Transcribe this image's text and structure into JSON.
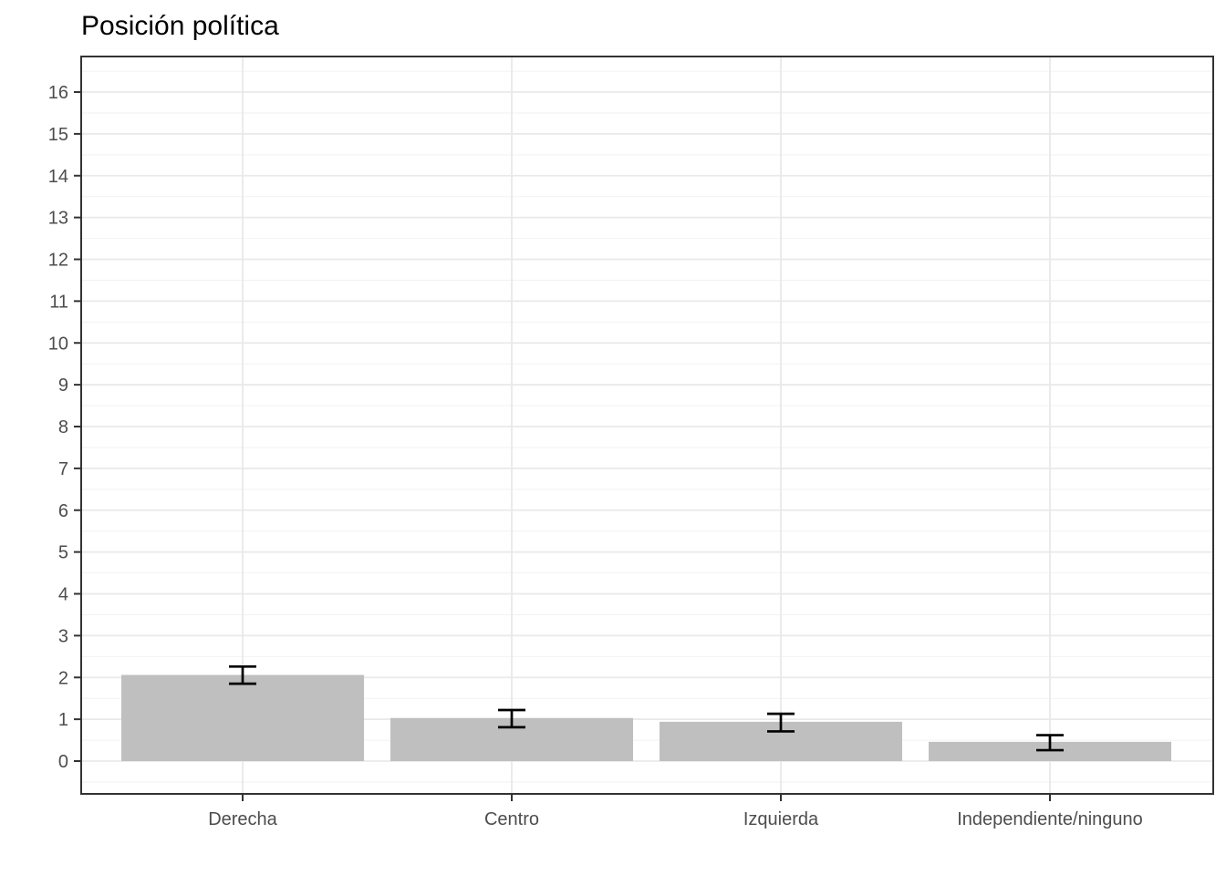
{
  "chart_data": {
    "type": "bar",
    "title": "Posición política",
    "xlabel": "",
    "ylabel": "",
    "categories": [
      "Derecha",
      "Centro",
      "Izquierda",
      "Independiente/ninguno"
    ],
    "values": [
      2.06,
      1.03,
      0.94,
      0.46
    ],
    "error_upper": [
      2.26,
      1.22,
      1.13,
      0.62
    ],
    "error_lower": [
      1.85,
      0.81,
      0.71,
      0.26
    ],
    "ylim": [
      0,
      16
    ],
    "yticks": [
      0,
      1,
      2,
      3,
      4,
      5,
      6,
      7,
      8,
      9,
      10,
      11,
      12,
      13,
      14,
      15,
      16
    ],
    "grid": {
      "major": true,
      "minor": true,
      "minor_step": 0.5
    },
    "legend": "none",
    "colors": {
      "bar_fill": "#bfbfbf",
      "error_bar": "#000000",
      "grid_major": "#e9e9e9",
      "grid_minor": "#f2f2f2",
      "panel_border": "#333333",
      "tick_mark": "#333333",
      "axis_text": "#4d4d4d",
      "title_text": "#000000",
      "panel_background": "#ffffff"
    }
  }
}
